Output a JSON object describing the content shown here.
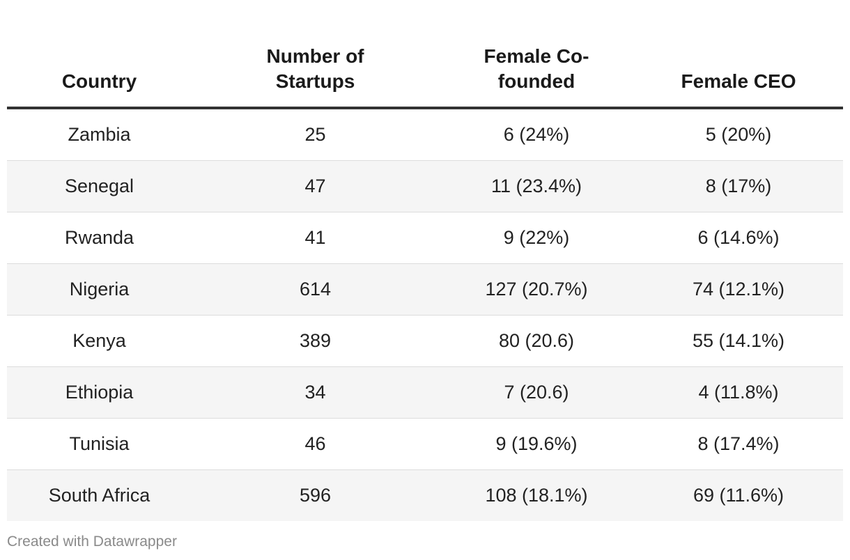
{
  "chart_data": {
    "type": "table",
    "columns": [
      "Country",
      "Number of Startups",
      "Female Co-founded",
      "Female CEO"
    ],
    "rows": [
      [
        "Zambia",
        "25",
        "6 (24%)",
        "5 (20%)"
      ],
      [
        "Senegal",
        "47",
        "11 (23.4%)",
        "8 (17%)"
      ],
      [
        "Rwanda",
        "41",
        "9 (22%)",
        "6 (14.6%)"
      ],
      [
        "Nigeria",
        "614",
        "127 (20.7%)",
        "74 (12.1%)"
      ],
      [
        "Kenya",
        "389",
        "80 (20.6)",
        "55 (14.1%)"
      ],
      [
        "Ethiopia",
        "34",
        "7 (20.6)",
        "4 (11.8%)"
      ],
      [
        "Tunisia",
        "46",
        "9 (19.6%)",
        "8 (17.4%)"
      ],
      [
        "South Africa",
        "596",
        "108 (18.1%)",
        "69 (11.6%)"
      ]
    ]
  },
  "footer": {
    "credit": "Created with Datawrapper"
  }
}
